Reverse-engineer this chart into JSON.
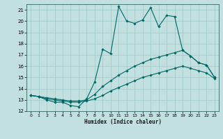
{
  "xlabel": "Humidex (Indice chaleur)",
  "bg_color": "#c2e0e0",
  "grid_color": "#9ec8c8",
  "line_color": "#006666",
  "spine_color": "#336666",
  "xlim": [
    -0.5,
    23.5
  ],
  "ylim": [
    12,
    21.5
  ],
  "yticks": [
    12,
    13,
    14,
    15,
    16,
    17,
    18,
    19,
    20,
    21
  ],
  "xticks": [
    0,
    1,
    2,
    3,
    4,
    5,
    6,
    7,
    8,
    9,
    10,
    11,
    12,
    13,
    14,
    15,
    16,
    17,
    18,
    19,
    20,
    21,
    22,
    23
  ],
  "line1_x": [
    0,
    1,
    2,
    3,
    4,
    5,
    6,
    7,
    8,
    9,
    10,
    11,
    12,
    13,
    14,
    15,
    16,
    17,
    18,
    19,
    20,
    21,
    22,
    23
  ],
  "line1_y": [
    13.4,
    13.3,
    13.0,
    12.8,
    12.8,
    12.5,
    12.4,
    13.1,
    14.6,
    17.5,
    17.1,
    21.3,
    20.0,
    19.8,
    20.1,
    21.2,
    19.5,
    20.5,
    20.4,
    17.4,
    16.9,
    16.3,
    16.1,
    15.0
  ],
  "line2_x": [
    0,
    1,
    2,
    3,
    4,
    5,
    6,
    7,
    8,
    9,
    10,
    11,
    12,
    13,
    14,
    15,
    16,
    17,
    18,
    19,
    20,
    21,
    22,
    23
  ],
  "line2_y": [
    13.4,
    13.3,
    13.2,
    13.1,
    13.0,
    12.9,
    12.9,
    13.0,
    13.5,
    14.2,
    14.7,
    15.2,
    15.6,
    16.0,
    16.3,
    16.6,
    16.8,
    17.0,
    17.2,
    17.4,
    16.9,
    16.3,
    16.1,
    15.0
  ],
  "line3_x": [
    0,
    1,
    2,
    3,
    4,
    5,
    6,
    7,
    8,
    9,
    10,
    11,
    12,
    13,
    14,
    15,
    16,
    17,
    18,
    19,
    20,
    21,
    22,
    23
  ],
  "line3_y": [
    13.4,
    13.3,
    13.1,
    13.0,
    12.9,
    12.8,
    12.8,
    12.9,
    13.1,
    13.4,
    13.8,
    14.1,
    14.4,
    14.7,
    15.0,
    15.2,
    15.4,
    15.6,
    15.8,
    16.0,
    15.8,
    15.6,
    15.4,
    14.9
  ]
}
